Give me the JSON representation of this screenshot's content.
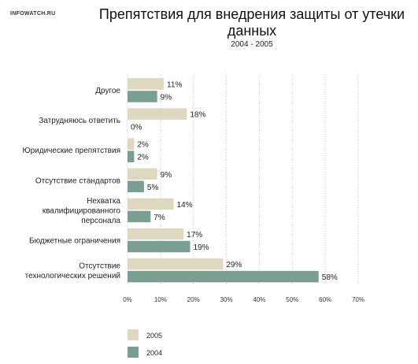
{
  "watermark": "INFOWATCH.RU",
  "chart_data": {
    "type": "bar",
    "orientation": "horizontal",
    "title": "Препятствия для внедрения защиты от утечки данных",
    "subtitle": "2004 - 2005",
    "categories": [
      "Другое",
      "Затрудняюсь ответить",
      "Юридические препятствия",
      "Отсутствие стандартов",
      "Нехватка квалифицированного персонала",
      "Бюджетные ограничения",
      "Отсутствие технологических решений"
    ],
    "category_lines": [
      [
        "Другое"
      ],
      [
        "Затрудняюсь ответить"
      ],
      [
        "Юридические препятствия"
      ],
      [
        "Отсутствие стандартов"
      ],
      [
        "Нехватка",
        "квалифицированного",
        "персонала"
      ],
      [
        "Бюджетные ограничения"
      ],
      [
        "Отсутствие",
        "технологических решений"
      ]
    ],
    "series": [
      {
        "name": "2005",
        "color": "#ddd8bf",
        "values": [
          11,
          18,
          2,
          9,
          14,
          17,
          29
        ],
        "labels": [
          "11%",
          "18%",
          "2%",
          "9%",
          "14%",
          "17%",
          "29%"
        ]
      },
      {
        "name": "2004",
        "color": "#7b9e92",
        "values": [
          9,
          0,
          2,
          5,
          7,
          19,
          58
        ],
        "labels": [
          "9%",
          "0%",
          "2%",
          "5%",
          "7%",
          "19%",
          "58%"
        ]
      }
    ],
    "xlim": [
      0,
      70
    ],
    "xticks": [
      0,
      10,
      20,
      30,
      40,
      50,
      60,
      70
    ],
    "xtick_labels": [
      "0%",
      "10%",
      "20%",
      "30%",
      "40%",
      "50%",
      "60%",
      "70%"
    ],
    "grid": "vertical dashed",
    "legend_position": "bottom-left"
  }
}
